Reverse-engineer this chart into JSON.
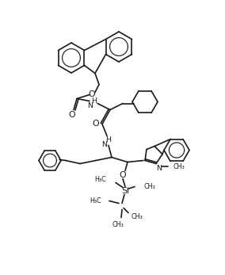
{
  "bg_color": "#ffffff",
  "line_color": "#1a1a1a",
  "lw": 1.2,
  "fs": 6.8,
  "figsize": [
    2.81,
    3.44
  ],
  "dpi": 100
}
